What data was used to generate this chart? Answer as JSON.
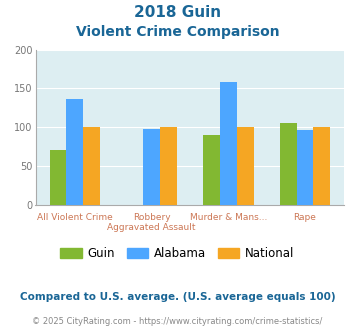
{
  "title_line1": "2018 Guin",
  "title_line2": "Violent Crime Comparison",
  "cat_labels_top": [
    "",
    "Robbery",
    "Murder & Mans...",
    ""
  ],
  "cat_labels_bottom": [
    "All Violent Crime",
    "Aggravated Assault",
    "",
    "Rape"
  ],
  "guin_values": [
    70,
    0,
    90,
    105
  ],
  "alabama_values": [
    136,
    98,
    158,
    96
  ],
  "national_values": [
    100,
    100,
    100,
    100
  ],
  "bar_colors": {
    "guin": "#82b832",
    "alabama": "#4da6ff",
    "national": "#f5a623"
  },
  "ylim": [
    0,
    200
  ],
  "yticks": [
    0,
    50,
    100,
    150,
    200
  ],
  "bg_color": "#ddeef2",
  "title_color": "#1a6696",
  "footnote1": "Compared to U.S. average. (U.S. average equals 100)",
  "footnote2": "© 2025 CityRating.com - https://www.cityrating.com/crime-statistics/",
  "footnote1_color": "#1a6696",
  "footnote2_color": "#888888",
  "legend_labels": [
    "Guin",
    "Alabama",
    "National"
  ],
  "xlabel_color": "#cc7755"
}
